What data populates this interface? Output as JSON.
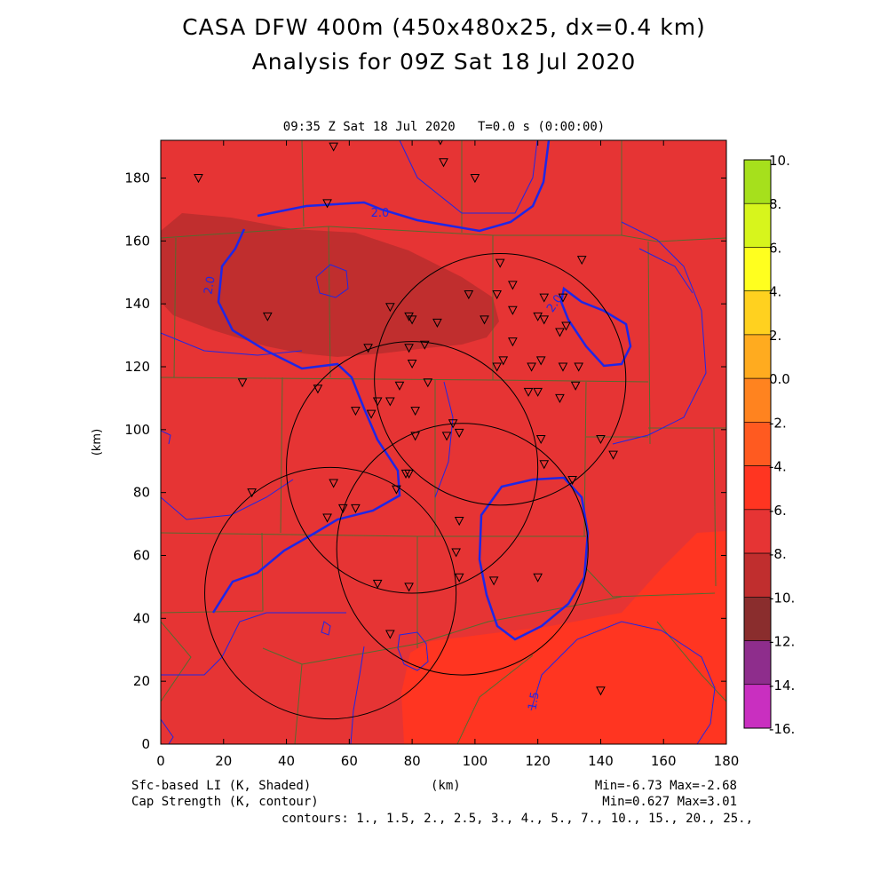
{
  "header": {
    "title_line1": "CASA DFW 400m (450x480x25, dx=0.4 km)",
    "title_line2": "Analysis for 09Z Sat 18 Jul 2020",
    "valid_time": "09:35 Z Sat 18 Jul 2020",
    "model_time": "T=0.0 s (0:00:00)"
  },
  "axes": {
    "x_label": "(km)",
    "y_label": "(km)",
    "x_ticks": [
      "0",
      "20",
      "40",
      "60",
      "80",
      "100",
      "120",
      "140",
      "160",
      "180"
    ],
    "y_ticks": [
      "0",
      "20",
      "40",
      "60",
      "80",
      "100",
      "120",
      "140",
      "160",
      "180"
    ],
    "x_range_km": [
      0,
      180
    ],
    "y_range_km": [
      0,
      192
    ]
  },
  "colorbar": {
    "labels": [
      "10.",
      "8.",
      "6.",
      "4.",
      "2.",
      "0.0",
      "-2.",
      "-4.",
      "-6.",
      "-8.",
      "-10.",
      "-12.",
      "-14.",
      "-16."
    ],
    "colors": [
      "#a6e01c",
      "#d7f51c",
      "#ffff1f",
      "#ffd11f",
      "#ffab1f",
      "#ff831f",
      "#ff5a20",
      "#ff3521",
      "#e63434",
      "#c02e2e",
      "#8a2d2d",
      "#8e2d8c",
      "#c92fc0",
      "#e050e6"
    ]
  },
  "contour_labels": [
    "2.0",
    "2.0",
    "2.0",
    "1.5"
  ],
  "footer": {
    "shaded_field": "Sfc-based LI (K, Shaded)",
    "contour_field": "Cap Strength (K, contour)",
    "x_unit": "(km)",
    "shaded_range": "Min=-6.73 Max=-2.68",
    "contour_range": "Min=0.627 Max=3.01",
    "contours": "contours: 1., 1.5, 2., 2.5, 3., 4., 5., 7., 10., 15., 20., 25.,"
  },
  "map_colors": {
    "base": "#e63434",
    "dark_region": "#c02e2e",
    "warm_region": "#ff3521",
    "contour": "#1f26e6",
    "counties": "#556b2f"
  },
  "chart_data": {
    "type": "heatmap",
    "x_range": [
      0,
      180
    ],
    "y_range": [
      0,
      192
    ],
    "radar_range_rings_km": [
      {
        "center": [
          108,
          116
        ],
        "radius": 40
      },
      {
        "center": [
          80,
          88
        ],
        "radius": 40
      },
      {
        "center": [
          96,
          62
        ],
        "radius": 40
      },
      {
        "center": [
          54,
          48
        ],
        "radius": 40
      }
    ],
    "stations_km": [
      [
        12,
        180
      ],
      [
        55,
        190
      ],
      [
        89,
        192
      ],
      [
        90,
        185
      ],
      [
        100,
        180
      ],
      [
        53,
        172
      ],
      [
        34,
        136
      ],
      [
        108,
        153
      ],
      [
        134,
        154
      ],
      [
        107,
        143
      ],
      [
        112,
        146
      ],
      [
        98,
        143
      ],
      [
        122,
        142
      ],
      [
        128,
        142
      ],
      [
        73,
        139
      ],
      [
        79,
        136
      ],
      [
        80,
        135
      ],
      [
        88,
        134
      ],
      [
        103,
        135
      ],
      [
        112,
        138
      ],
      [
        120,
        136
      ],
      [
        122,
        135
      ],
      [
        127,
        131
      ],
      [
        129,
        133
      ],
      [
        66,
        126
      ],
      [
        79,
        126
      ],
      [
        84,
        127
      ],
      [
        112,
        128
      ],
      [
        80,
        121
      ],
      [
        107,
        120
      ],
      [
        109,
        122
      ],
      [
        118,
        120
      ],
      [
        121,
        122
      ],
      [
        128,
        120
      ],
      [
        133,
        120
      ],
      [
        26,
        115
      ],
      [
        50,
        113
      ],
      [
        76,
        114
      ],
      [
        85,
        115
      ],
      [
        117,
        112
      ],
      [
        120,
        112
      ],
      [
        127,
        110
      ],
      [
        132,
        114
      ],
      [
        69,
        109
      ],
      [
        73,
        109
      ],
      [
        62,
        106
      ],
      [
        67,
        105
      ],
      [
        81,
        106
      ],
      [
        93,
        102
      ],
      [
        81,
        98
      ],
      [
        91,
        98
      ],
      [
        95,
        99
      ],
      [
        121,
        97
      ],
      [
        140,
        97
      ],
      [
        144,
        92
      ],
      [
        122,
        89
      ],
      [
        29,
        80
      ],
      [
        55,
        83
      ],
      [
        78,
        86
      ],
      [
        79,
        86
      ],
      [
        75,
        81
      ],
      [
        58,
        75
      ],
      [
        62,
        75
      ],
      [
        53,
        72
      ],
      [
        95,
        71
      ],
      [
        131,
        84
      ],
      [
        94,
        61
      ],
      [
        69,
        51
      ],
      [
        79,
        50
      ],
      [
        95,
        53
      ],
      [
        106,
        52
      ],
      [
        120,
        53
      ],
      [
        73,
        35
      ],
      [
        140,
        17
      ]
    ]
  }
}
